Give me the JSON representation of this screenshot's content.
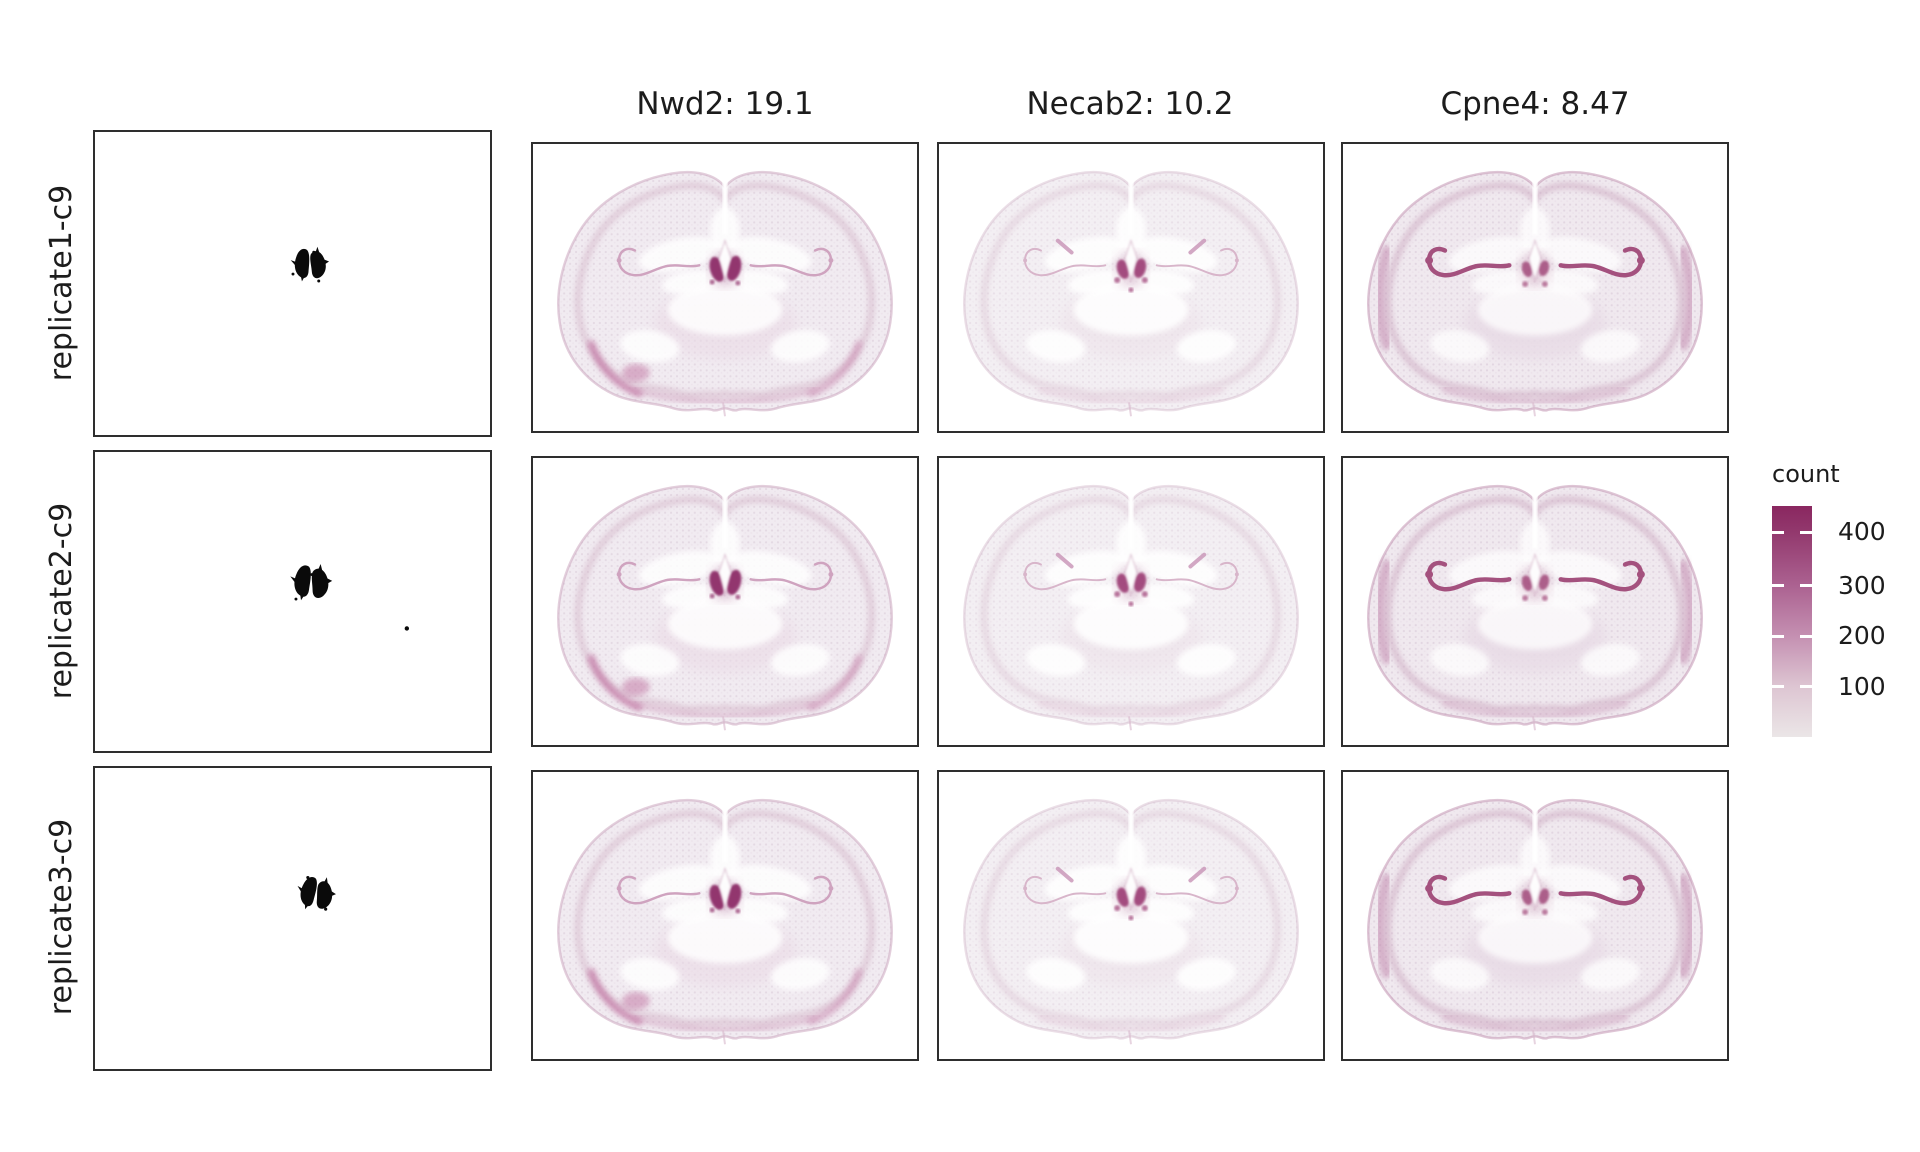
{
  "chart_data": {
    "type": "scatter",
    "title": "",
    "rows": [
      "replicate1-c9",
      "replicate2-c9",
      "replicate3-c9"
    ],
    "columns": [
      {
        "kind": "cluster_mask",
        "gene": "c9-mask",
        "title": ""
      },
      {
        "kind": "expression",
        "gene": "Nwd2",
        "score": 19.1,
        "title": "Nwd2: 19.1"
      },
      {
        "kind": "expression",
        "gene": "Necab2",
        "score": 10.2,
        "title": "Necab2: 10.2"
      },
      {
        "kind": "expression",
        "gene": "Cpne4",
        "score": 8.47,
        "title": "Cpne4: 8.47"
      }
    ],
    "colorbar": {
      "label": "count",
      "ticks": [
        400,
        300,
        200,
        100
      ],
      "color_high": "#8a2760",
      "color_low": "#ebe6e7",
      "legend_position": "right"
    },
    "panel_grid": {
      "n_rows": 3,
      "n_cols": 4,
      "grid": true
    }
  }
}
